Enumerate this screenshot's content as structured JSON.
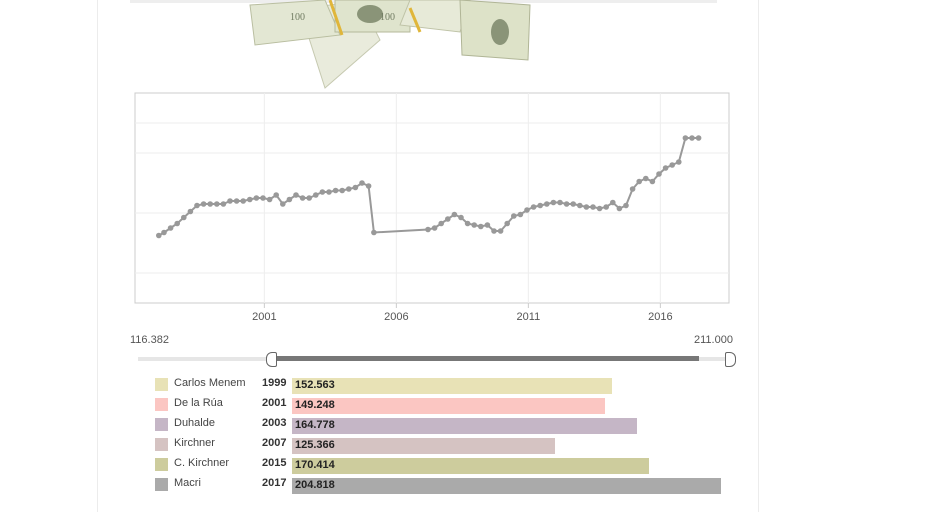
{
  "range": {
    "min_label": "116.382",
    "max_label": "211.000"
  },
  "slider": {
    "min_fraction": 0.23,
    "max_fraction": 0.945
  },
  "colors": {
    "line": "#999999",
    "grid": "#eeeeee"
  },
  "chart_data": {
    "type": "line",
    "xlabel": "",
    "ylabel": "",
    "x_ticks": [
      "2001",
      "2006",
      "2011",
      "2016"
    ],
    "xlim": [
      1996.1,
      2018.6
    ],
    "ylim": [
      80,
      220
    ],
    "grid": true,
    "series": [
      {
        "values": [
          [
            1997.0,
            125
          ],
          [
            1997.2,
            127
          ],
          [
            1997.45,
            130
          ],
          [
            1997.7,
            133
          ],
          [
            1997.95,
            137
          ],
          [
            1998.2,
            141
          ],
          [
            1998.45,
            145
          ],
          [
            1998.7,
            146
          ],
          [
            1998.95,
            146
          ],
          [
            1999.2,
            146
          ],
          [
            1999.45,
            146
          ],
          [
            1999.7,
            148
          ],
          [
            1999.95,
            148
          ],
          [
            2000.2,
            148
          ],
          [
            2000.45,
            149
          ],
          [
            2000.7,
            150
          ],
          [
            2000.95,
            150
          ],
          [
            2001.2,
            149
          ],
          [
            2001.45,
            152
          ],
          [
            2001.7,
            146
          ],
          [
            2001.95,
            149
          ],
          [
            2002.2,
            152
          ],
          [
            2002.45,
            150
          ],
          [
            2002.7,
            150
          ],
          [
            2002.95,
            152
          ],
          [
            2003.2,
            154
          ],
          [
            2003.45,
            154
          ],
          [
            2003.7,
            155
          ],
          [
            2003.95,
            155
          ],
          [
            2004.2,
            156
          ],
          [
            2004.45,
            157
          ],
          [
            2004.7,
            160
          ],
          [
            2004.95,
            158
          ],
          [
            2005.15,
            127
          ],
          [
            2007.2,
            129
          ],
          [
            2007.45,
            130
          ],
          [
            2007.7,
            133
          ],
          [
            2007.95,
            136
          ],
          [
            2008.2,
            139
          ],
          [
            2008.45,
            137
          ],
          [
            2008.7,
            133
          ],
          [
            2008.95,
            132
          ],
          [
            2009.2,
            131
          ],
          [
            2009.45,
            132
          ],
          [
            2009.7,
            128
          ],
          [
            2009.95,
            128
          ],
          [
            2010.2,
            133
          ],
          [
            2010.45,
            138
          ],
          [
            2010.7,
            139
          ],
          [
            2010.95,
            142
          ],
          [
            2011.2,
            144
          ],
          [
            2011.45,
            145
          ],
          [
            2011.7,
            146
          ],
          [
            2011.95,
            147
          ],
          [
            2012.2,
            147
          ],
          [
            2012.45,
            146
          ],
          [
            2012.7,
            146
          ],
          [
            2012.95,
            145
          ],
          [
            2013.2,
            144
          ],
          [
            2013.45,
            144
          ],
          [
            2013.7,
            143
          ],
          [
            2013.95,
            144
          ],
          [
            2014.2,
            147
          ],
          [
            2014.45,
            143
          ],
          [
            2014.7,
            145
          ],
          [
            2014.95,
            156
          ],
          [
            2015.2,
            161
          ],
          [
            2015.45,
            163
          ],
          [
            2015.7,
            161
          ],
          [
            2015.95,
            166
          ],
          [
            2016.2,
            170
          ],
          [
            2016.45,
            172
          ],
          [
            2016.7,
            174
          ],
          [
            2016.95,
            190
          ],
          [
            2017.2,
            190
          ],
          [
            2017.45,
            190
          ]
        ]
      }
    ]
  },
  "bars": {
    "max_value": 211.0,
    "items": [
      {
        "name": "Carlos Menem",
        "year": "1999",
        "value": 152.563,
        "label": "152.563",
        "swatch": "#e8e2b6",
        "bar": "#e8e2b6"
      },
      {
        "name": "De la Rúa",
        "year": "2001",
        "value": 149.248,
        "label": "149.248",
        "swatch": "#fbc6c2",
        "bar": "#fbc6c2"
      },
      {
        "name": "Duhalde",
        "year": "2003",
        "value": 164.778,
        "label": "164.778",
        "swatch": "#c5b6c6",
        "bar": "#c5b6c6"
      },
      {
        "name": "Kirchner",
        "year": "2007",
        "value": 125.366,
        "label": "125.366",
        "swatch": "#d5c3c2",
        "bar": "#d5c3c2"
      },
      {
        "name": "C. Kirchner",
        "year": "2015",
        "value": 170.414,
        "label": "170.414",
        "swatch": "#cdcc9d",
        "bar": "#cdcc9d"
      },
      {
        "name": "Macri",
        "year": "2017",
        "value": 204.818,
        "label": "204.818",
        "swatch": "#aaaaaa",
        "bar": "#aaaaaa"
      }
    ]
  }
}
